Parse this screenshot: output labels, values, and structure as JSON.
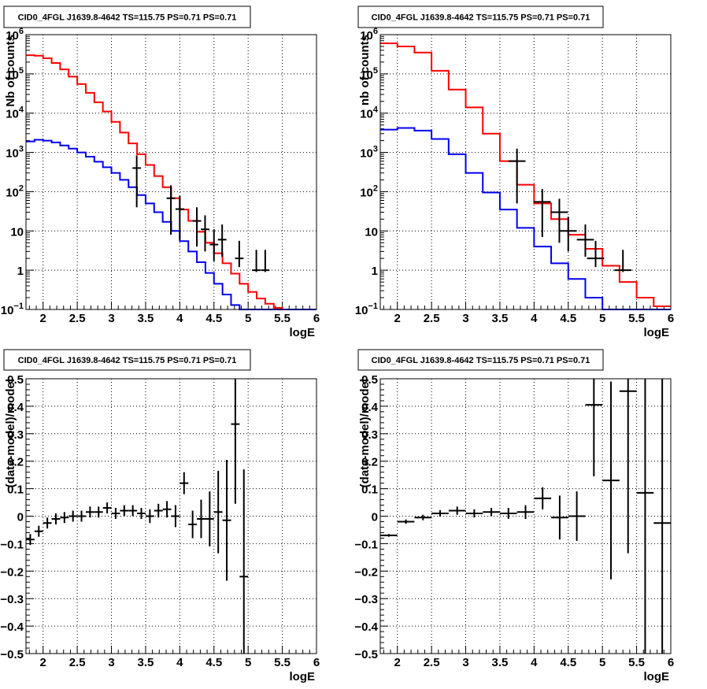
{
  "chart_data": [
    {
      "id": "p1",
      "type": "histogram",
      "title": "CID0_4FGL J1639.8-4642 TS=115.75 PS=0.71 PS=0.71",
      "xlabel": "logE",
      "ylabel": "Nb of counts",
      "xlim": [
        1.75,
        6.0
      ],
      "ylim": [
        0.1,
        1000000
      ],
      "yscale": "log",
      "grid": true,
      "xticks": [
        2,
        2.5,
        3,
        3.5,
        4,
        4.5,
        5,
        5.5,
        6
      ],
      "xtick_labels": [
        "2",
        "2.5",
        "3",
        "3.5",
        "4",
        "4.5",
        "5",
        "5.5",
        "6"
      ],
      "yticks": [
        0.1,
        1,
        10,
        100,
        1000,
        10000,
        100000,
        1000000
      ],
      "ytick_labels": [
        {
          "base": "10",
          "exp": "−1"
        },
        {
          "base": "1",
          "exp": ""
        },
        {
          "base": "10",
          "exp": ""
        },
        {
          "base": "10",
          "exp": "2"
        },
        {
          "base": "10",
          "exp": "3"
        },
        {
          "base": "10",
          "exp": "4"
        },
        {
          "base": "10",
          "exp": "5"
        },
        {
          "base": "10",
          "exp": "6"
        }
      ],
      "bin_edges": [
        1.75,
        1.875,
        2.0,
        2.125,
        2.25,
        2.375,
        2.5,
        2.625,
        2.75,
        2.875,
        3.0,
        3.125,
        3.25,
        3.375,
        3.5,
        3.625,
        3.75,
        3.875,
        4.0,
        4.125,
        4.25,
        4.375,
        4.5,
        4.625,
        4.75,
        4.875,
        5.0,
        5.125,
        5.25,
        5.375,
        5.5,
        5.625,
        5.75,
        5.875,
        6.0
      ],
      "series": [
        {
          "color": "#ff0000",
          "values": [
            300000,
            290000,
            250000,
            190000,
            130000,
            85000,
            55000,
            33000,
            19000,
            11000,
            6000,
            3200,
            1700,
            900,
            480,
            250,
            130,
            68,
            35,
            18,
            9.5,
            5.0,
            2.7,
            1.5,
            0.82,
            0.45,
            0.28,
            0.19,
            0.14,
            0.11,
            0.1,
            0.1,
            0.1,
            0.1
          ]
        },
        {
          "color": "#0000ee",
          "values": [
            1900,
            2100,
            2000,
            1800,
            1500,
            1250,
            1000,
            780,
            580,
            420,
            300,
            200,
            130,
            82,
            50,
            30,
            17,
            10,
            5.5,
            3.0,
            1.6,
            0.85,
            0.45,
            0.24,
            0.13,
            0.1,
            0.1,
            0.1,
            0.1,
            0.1,
            0.1,
            0.1,
            0.1,
            0.1
          ]
        }
      ],
      "points": [
        {
          "x": 3.37,
          "y": 400,
          "yerr_lo": 360,
          "yerr_hi": 440,
          "xerr": 0.0625
        },
        {
          "x": 3.87,
          "y": 68,
          "yerr_lo": 60,
          "yerr_hi": 77,
          "xerr": 0.0625
        },
        {
          "x": 4.0,
          "y": 36,
          "yerr_lo": 30,
          "yerr_hi": 42,
          "xerr": 0.0625
        },
        {
          "x": 4.25,
          "y": 18,
          "yerr_lo": 14,
          "yerr_hi": 22,
          "xerr": 0.0625
        },
        {
          "x": 4.37,
          "y": 11,
          "yerr_lo": 8,
          "yerr_hi": 14,
          "xerr": 0.0625
        },
        {
          "x": 4.5,
          "y": 4.5,
          "yerr_lo": 2.8,
          "yerr_hi": 6.5,
          "xerr": 0.0625
        },
        {
          "x": 4.62,
          "y": 6,
          "yerr_lo": 3.8,
          "yerr_hi": 8.6,
          "xerr": 0.0625
        },
        {
          "x": 4.87,
          "y": 2,
          "yerr_lo": 0.8,
          "yerr_hi": 3.6,
          "xerr": 0.0625
        },
        {
          "x": 5.12,
          "y": 1,
          "yerr_lo": 0.1,
          "yerr_hi": 2.3,
          "xerr": 0.0625
        },
        {
          "x": 5.25,
          "y": 1,
          "yerr_lo": 0.1,
          "yerr_hi": 2.3,
          "xerr": 0.0625
        }
      ]
    },
    {
      "id": "p2",
      "type": "histogram",
      "title": "CID0_4FGL J1639.8-4642 TS=115.75 PS=0.71 PS=0.71",
      "xlabel": "logE",
      "ylabel": "nb of counts",
      "xlim": [
        1.75,
        6.0
      ],
      "ylim": [
        0.1,
        1000000
      ],
      "yscale": "log",
      "grid": true,
      "xticks": [
        2,
        2.5,
        3,
        3.5,
        4,
        4.5,
        5,
        5.5,
        6
      ],
      "xtick_labels": [
        "2",
        "2.5",
        "3",
        "3.5",
        "4",
        "4.5",
        "5",
        "5.5",
        "6"
      ],
      "yticks": [
        0.1,
        1,
        10,
        100,
        1000,
        10000,
        100000,
        1000000
      ],
      "ytick_labels": [
        {
          "base": "10",
          "exp": "−1"
        },
        {
          "base": "1",
          "exp": ""
        },
        {
          "base": "10",
          "exp": ""
        },
        {
          "base": "10",
          "exp": "2"
        },
        {
          "base": "10",
          "exp": "3"
        },
        {
          "base": "10",
          "exp": "4"
        },
        {
          "base": "10",
          "exp": "5"
        },
        {
          "base": "10",
          "exp": "6"
        }
      ],
      "bin_edges": [
        1.75,
        2.0,
        2.25,
        2.5,
        2.75,
        3.0,
        3.25,
        3.5,
        3.75,
        4.0,
        4.25,
        4.5,
        4.75,
        5.0,
        5.25,
        5.5,
        5.75,
        6.0
      ],
      "series": [
        {
          "color": "#ff0000",
          "values": [
            600000,
            500000,
            350000,
            120000,
            40000,
            14000,
            3000,
            600,
            150,
            50,
            20,
            8,
            3.5,
            1.3,
            0.5,
            0.2,
            0.12
          ]
        },
        {
          "color": "#0000ee",
          "values": [
            3800,
            4200,
            3600,
            2200,
            900,
            300,
            95,
            35,
            12,
            4.0,
            1.5,
            0.6,
            0.2,
            0.1,
            0.1,
            0.1,
            0.1
          ]
        }
      ],
      "points": [
        {
          "x": 3.75,
          "y": 600,
          "yerr_lo": 550,
          "yerr_hi": 650,
          "xerr": 0.125
        },
        {
          "x": 4.12,
          "y": 55,
          "yerr_lo": 48,
          "yerr_hi": 62,
          "xerr": 0.125
        },
        {
          "x": 4.37,
          "y": 30,
          "yerr_lo": 25,
          "yerr_hi": 36,
          "xerr": 0.125
        },
        {
          "x": 4.5,
          "y": 10,
          "yerr_lo": 7,
          "yerr_hi": 13,
          "xerr": 0.125
        },
        {
          "x": 4.75,
          "y": 6,
          "yerr_lo": 3.8,
          "yerr_hi": 8.6,
          "xerr": 0.125
        },
        {
          "x": 4.9,
          "y": 2,
          "yerr_lo": 0.8,
          "yerr_hi": 3.6,
          "xerr": 0.125
        },
        {
          "x": 5.3,
          "y": 1,
          "yerr_lo": 0.1,
          "yerr_hi": 2.3,
          "xerr": 0.125
        }
      ]
    },
    {
      "id": "p3",
      "type": "scatter",
      "title": "CID0_4FGL J1639.8-4642 TS=115.75 PS=0.71 PS=0.71",
      "xlabel": "logE",
      "ylabel": "(data-model)/model",
      "xlim": [
        1.75,
        6.0
      ],
      "ylim": [
        -0.5,
        0.5
      ],
      "yscale": "linear",
      "grid": true,
      "xticks": [
        2,
        2.5,
        3,
        3.5,
        4,
        4.5,
        5,
        5.5,
        6
      ],
      "xtick_labels": [
        "2",
        "2.5",
        "3",
        "3.5",
        "4",
        "4.5",
        "5",
        "5.5",
        "6"
      ],
      "yticks": [
        -0.5,
        -0.4,
        -0.3,
        -0.2,
        -0.1,
        0,
        0.1,
        0.2,
        0.3,
        0.4,
        0.5
      ],
      "ytick_labels": [
        {
          "base": "−0.5",
          "exp": ""
        },
        {
          "base": "−0.4",
          "exp": ""
        },
        {
          "base": "−0.3",
          "exp": ""
        },
        {
          "base": "−0.2",
          "exp": ""
        },
        {
          "base": "−0.1",
          "exp": ""
        },
        {
          "base": "0",
          "exp": ""
        },
        {
          "base": "0.1",
          "exp": ""
        },
        {
          "base": "0.2",
          "exp": ""
        },
        {
          "base": "0.3",
          "exp": ""
        },
        {
          "base": "0.4",
          "exp": ""
        },
        {
          "base": "0.5",
          "exp": ""
        }
      ],
      "points": [
        {
          "x": 1.8125,
          "y": -0.085,
          "yerr": 0.02,
          "xerr": 0.0625
        },
        {
          "x": 1.9375,
          "y": -0.055,
          "yerr": 0.02,
          "xerr": 0.0625
        },
        {
          "x": 2.0625,
          "y": -0.025,
          "yerr": 0.02,
          "xerr": 0.0625
        },
        {
          "x": 2.1875,
          "y": -0.01,
          "yerr": 0.02,
          "xerr": 0.0625
        },
        {
          "x": 2.3125,
          "y": -0.005,
          "yerr": 0.02,
          "xerr": 0.0625
        },
        {
          "x": 2.4375,
          "y": 0.0,
          "yerr": 0.02,
          "xerr": 0.0625
        },
        {
          "x": 2.5625,
          "y": 0.0,
          "yerr": 0.02,
          "xerr": 0.0625
        },
        {
          "x": 2.6875,
          "y": 0.015,
          "yerr": 0.02,
          "xerr": 0.0625
        },
        {
          "x": 2.8125,
          "y": 0.015,
          "yerr": 0.02,
          "xerr": 0.0625
        },
        {
          "x": 2.9375,
          "y": 0.03,
          "yerr": 0.02,
          "xerr": 0.0625
        },
        {
          "x": 3.0625,
          "y": 0.01,
          "yerr": 0.02,
          "xerr": 0.0625
        },
        {
          "x": 3.1875,
          "y": 0.02,
          "yerr": 0.02,
          "xerr": 0.0625
        },
        {
          "x": 3.3125,
          "y": 0.02,
          "yerr": 0.02,
          "xerr": 0.0625
        },
        {
          "x": 3.4375,
          "y": 0.01,
          "yerr": 0.02,
          "xerr": 0.0625
        },
        {
          "x": 3.5625,
          "y": 0.0,
          "yerr": 0.025,
          "xerr": 0.0625
        },
        {
          "x": 3.6875,
          "y": 0.02,
          "yerr": 0.025,
          "xerr": 0.0625
        },
        {
          "x": 3.8125,
          "y": 0.025,
          "yerr": 0.03,
          "xerr": 0.0625
        },
        {
          "x": 3.9375,
          "y": 0.0,
          "yerr": 0.04,
          "xerr": 0.0625
        },
        {
          "x": 4.0625,
          "y": 0.12,
          "yerr": 0.04,
          "xerr": 0.0625
        },
        {
          "x": 4.1875,
          "y": -0.03,
          "yerr": 0.05,
          "xerr": 0.0625
        },
        {
          "x": 4.3125,
          "y": -0.01,
          "yerr": 0.07,
          "xerr": 0.0625
        },
        {
          "x": 4.4375,
          "y": -0.01,
          "yerr": 0.1,
          "xerr": 0.0625
        },
        {
          "x": 4.5625,
          "y": 0.015,
          "yerr": 0.15,
          "xerr": 0.0625
        },
        {
          "x": 4.6875,
          "y": -0.015,
          "yerr": 0.22,
          "xerr": 0.0625
        },
        {
          "x": 4.8125,
          "y": 0.335,
          "yerr": 0.29,
          "xerr": 0.0625
        },
        {
          "x": 4.9375,
          "y": -0.22,
          "yerr": 0.39,
          "xerr": 0.0625
        }
      ]
    },
    {
      "id": "p4",
      "type": "scatter",
      "title": "CID0_4FGL J1639.8-4642 TS=115.75 PS=0.71 PS=0.71",
      "xlabel": "logE",
      "ylabel": "(data-model)/model",
      "xlim": [
        1.75,
        6.0
      ],
      "ylim": [
        -0.5,
        0.5
      ],
      "yscale": "linear",
      "grid": true,
      "xticks": [
        2,
        2.5,
        3,
        3.5,
        4,
        4.5,
        5,
        5.5,
        6
      ],
      "xtick_labels": [
        "2",
        "2.5",
        "3",
        "3.5",
        "4",
        "4.5",
        "5",
        "5.5",
        "6"
      ],
      "yticks": [
        -0.5,
        -0.4,
        -0.3,
        -0.2,
        -0.1,
        0,
        0.1,
        0.2,
        0.3,
        0.4,
        0.5
      ],
      "ytick_labels": [
        {
          "base": "−0.5",
          "exp": ""
        },
        {
          "base": "−0.4",
          "exp": ""
        },
        {
          "base": "−0.3",
          "exp": ""
        },
        {
          "base": "−0.2",
          "exp": ""
        },
        {
          "base": "−0.1",
          "exp": ""
        },
        {
          "base": "0",
          "exp": ""
        },
        {
          "base": "0.1",
          "exp": ""
        },
        {
          "base": "0.2",
          "exp": ""
        },
        {
          "base": "0.3",
          "exp": ""
        },
        {
          "base": "0.4",
          "exp": ""
        },
        {
          "base": "0.5",
          "exp": ""
        }
      ],
      "points": [
        {
          "x": 1.875,
          "y": -0.07,
          "yerr": 0.005,
          "xerr": 0.125
        },
        {
          "x": 2.125,
          "y": -0.02,
          "yerr": 0.008,
          "xerr": 0.125
        },
        {
          "x": 2.375,
          "y": -0.005,
          "yerr": 0.01,
          "xerr": 0.125
        },
        {
          "x": 2.625,
          "y": 0.01,
          "yerr": 0.012,
          "xerr": 0.125
        },
        {
          "x": 2.875,
          "y": 0.02,
          "yerr": 0.015,
          "xerr": 0.125
        },
        {
          "x": 3.125,
          "y": 0.01,
          "yerr": 0.015,
          "xerr": 0.125
        },
        {
          "x": 3.375,
          "y": 0.015,
          "yerr": 0.015,
          "xerr": 0.125
        },
        {
          "x": 3.625,
          "y": 0.01,
          "yerr": 0.02,
          "xerr": 0.125
        },
        {
          "x": 3.875,
          "y": 0.015,
          "yerr": 0.025,
          "xerr": 0.125
        },
        {
          "x": 4.125,
          "y": 0.065,
          "yerr": 0.04,
          "xerr": 0.125
        },
        {
          "x": 4.375,
          "y": -0.005,
          "yerr": 0.08,
          "xerr": 0.125
        },
        {
          "x": 4.625,
          "y": 0.0,
          "yerr": 0.09,
          "xerr": 0.125
        },
        {
          "x": 4.875,
          "y": 0.405,
          "yerr": 0.26,
          "xerr": 0.125
        },
        {
          "x": 5.125,
          "y": 0.13,
          "yerr": 0.36,
          "xerr": 0.125
        },
        {
          "x": 5.375,
          "y": 0.455,
          "yerr": 0.59,
          "xerr": 0.125
        },
        {
          "x": 5.625,
          "y": 0.085,
          "yerr": 0.7,
          "xerr": 0.125
        },
        {
          "x": 5.875,
          "y": -0.025,
          "yerr": 0.7,
          "xerr": 0.125
        }
      ]
    }
  ]
}
